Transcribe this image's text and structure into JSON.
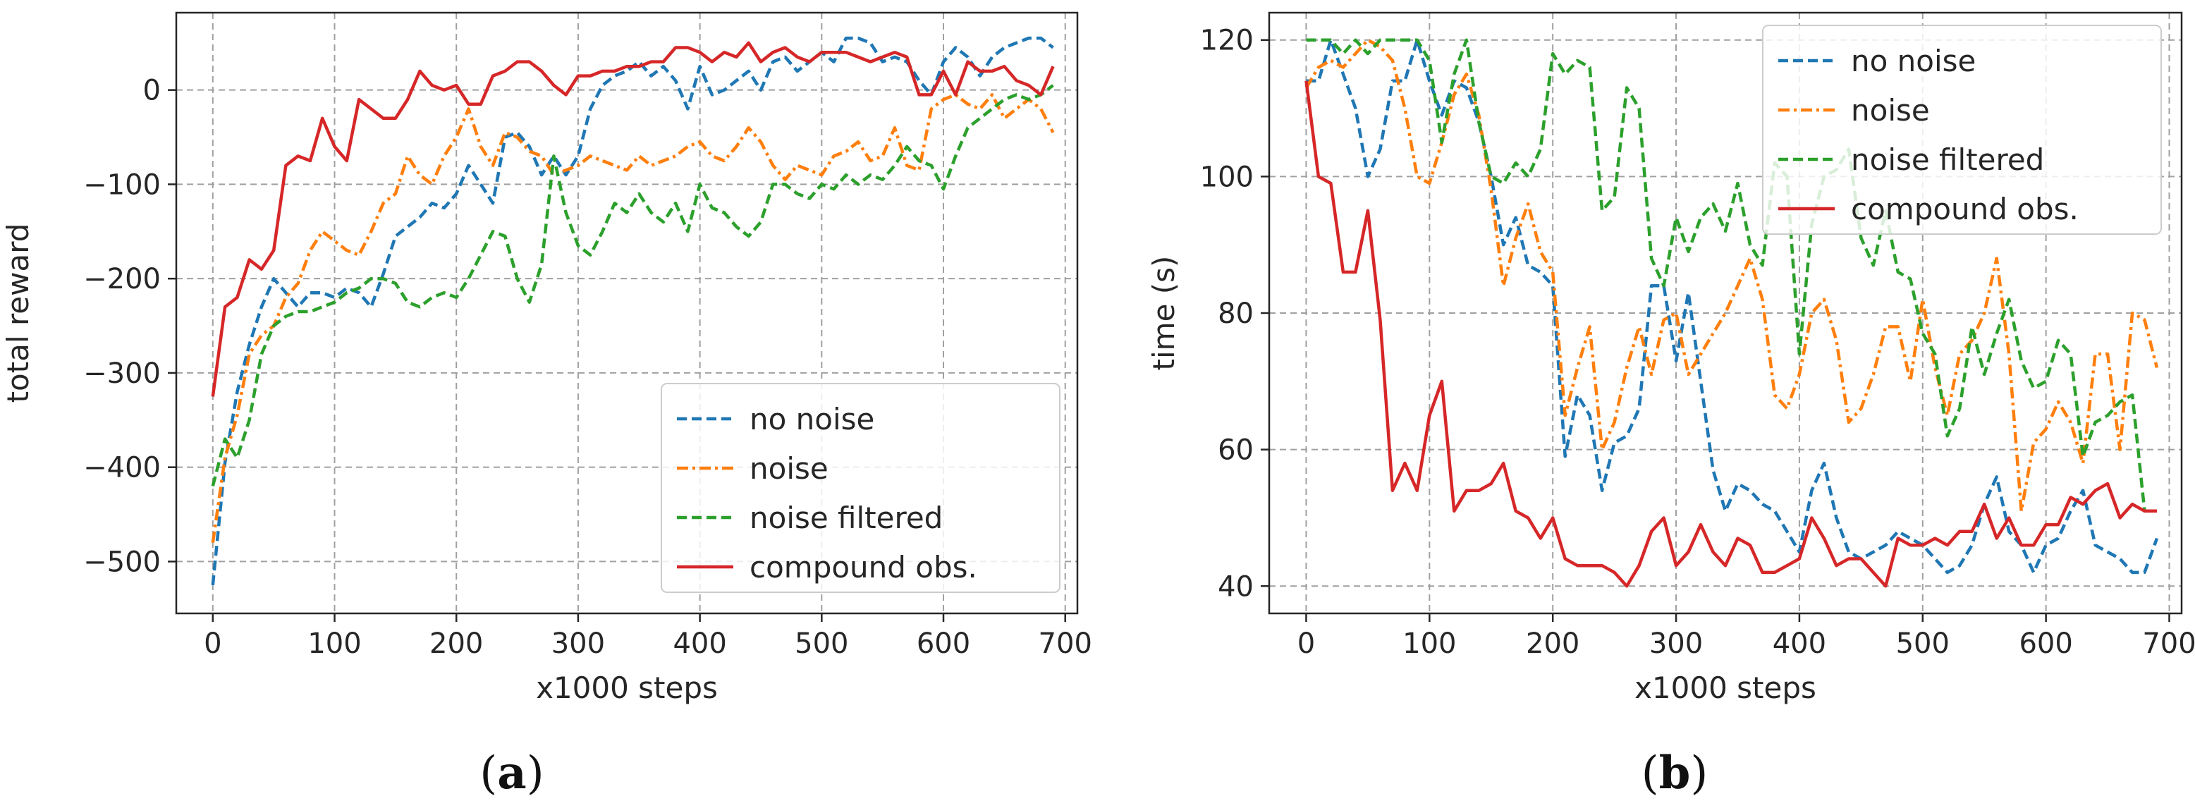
{
  "colors": {
    "no_noise": "#1f77b4",
    "noise": "#ff7f0e",
    "noise_filtered": "#2ca02c",
    "compound_obs": "#d62728",
    "grid": "#a0a0a0",
    "axis": "#262626"
  },
  "captions": {
    "a_open": "(",
    "a_letter": "a",
    "a_close": ")",
    "b_open": "(",
    "b_letter": "b",
    "b_close": ")"
  },
  "chart_data": [
    {
      "type": "line",
      "title": "",
      "xlabel": "x1000 steps",
      "ylabel": "total reward",
      "xlim": [
        -30,
        710
      ],
      "ylim": [
        -555,
        82
      ],
      "xticks": [
        0,
        100,
        200,
        300,
        400,
        500,
        600,
        700
      ],
      "xtick_labels": [
        "0",
        "100",
        "200",
        "300",
        "400",
        "500",
        "600",
        "700"
      ],
      "yticks": [
        -500,
        -400,
        -300,
        -200,
        -100,
        0
      ],
      "ytick_labels": [
        "−500",
        "−400",
        "−300",
        "−200",
        "−100",
        "0"
      ],
      "grid": true,
      "legend_position": "bottom-right",
      "x": [
        0,
        10,
        20,
        30,
        40,
        50,
        60,
        70,
        80,
        90,
        100,
        110,
        120,
        130,
        140,
        150,
        160,
        170,
        180,
        190,
        200,
        210,
        220,
        230,
        240,
        250,
        260,
        270,
        280,
        290,
        300,
        310,
        320,
        330,
        340,
        350,
        360,
        370,
        380,
        390,
        400,
        410,
        420,
        430,
        440,
        450,
        460,
        470,
        480,
        490,
        500,
        510,
        520,
        530,
        540,
        550,
        560,
        570,
        580,
        590,
        600,
        610,
        620,
        630,
        640,
        650,
        660,
        670,
        680,
        690
      ],
      "series": [
        {
          "name": "no noise",
          "style": "dashed",
          "values": [
            -525,
            -395,
            -320,
            -270,
            -230,
            -200,
            -215,
            -230,
            -215,
            -215,
            -220,
            -210,
            -215,
            -230,
            -195,
            -155,
            -145,
            -135,
            -120,
            -125,
            -110,
            -80,
            -100,
            -120,
            -50,
            -45,
            -60,
            -90,
            -70,
            -90,
            -70,
            -20,
            5,
            15,
            20,
            30,
            15,
            25,
            10,
            -20,
            25,
            -5,
            0,
            10,
            20,
            0,
            30,
            35,
            20,
            30,
            40,
            30,
            55,
            55,
            50,
            30,
            35,
            30,
            10,
            -5,
            30,
            45,
            35,
            15,
            35,
            45,
            50,
            55,
            55,
            45
          ]
        },
        {
          "name": "noise",
          "style": "dashdot",
          "values": [
            -480,
            -390,
            -345,
            -280,
            -260,
            -250,
            -220,
            -205,
            -170,
            -150,
            -160,
            -170,
            -175,
            -150,
            -120,
            -110,
            -70,
            -90,
            -100,
            -70,
            -50,
            -20,
            -60,
            -80,
            -45,
            -50,
            -65,
            -70,
            -90,
            -85,
            -80,
            -70,
            -75,
            -80,
            -85,
            -70,
            -80,
            -75,
            -70,
            -60,
            -55,
            -70,
            -75,
            -60,
            -40,
            -55,
            -80,
            -95,
            -80,
            -85,
            -90,
            -70,
            -65,
            -55,
            -75,
            -70,
            -40,
            -80,
            -85,
            -20,
            -10,
            -5,
            -15,
            -20,
            -5,
            -30,
            -20,
            -10,
            -20,
            -45
          ]
        },
        {
          "name": "noise filtered",
          "style": "dashed",
          "values": [
            -420,
            -370,
            -390,
            -350,
            -280,
            -250,
            -240,
            -235,
            -235,
            -230,
            -225,
            -215,
            -210,
            -200,
            -200,
            -205,
            -225,
            -230,
            -220,
            -215,
            -220,
            -200,
            -175,
            -150,
            -155,
            -200,
            -225,
            -185,
            -70,
            -130,
            -165,
            -175,
            -150,
            -120,
            -130,
            -110,
            -130,
            -140,
            -120,
            -150,
            -100,
            -125,
            -130,
            -145,
            -155,
            -140,
            -100,
            -100,
            -110,
            -115,
            -100,
            -105,
            -90,
            -100,
            -90,
            -95,
            -80,
            -60,
            -75,
            -80,
            -105,
            -70,
            -40,
            -30,
            -20,
            -10,
            -5,
            -10,
            -5,
            5
          ]
        },
        {
          "name": "compound obs.",
          "style": "solid",
          "values": [
            -325,
            -230,
            -220,
            -180,
            -190,
            -170,
            -80,
            -70,
            -75,
            -30,
            -60,
            -75,
            -10,
            -20,
            -30,
            -30,
            -10,
            20,
            5,
            0,
            5,
            -15,
            -15,
            15,
            20,
            30,
            30,
            20,
            5,
            -5,
            15,
            15,
            20,
            20,
            25,
            25,
            30,
            30,
            45,
            45,
            40,
            30,
            40,
            35,
            50,
            30,
            40,
            45,
            35,
            30,
            40,
            40,
            40,
            35,
            30,
            35,
            40,
            35,
            -5,
            -5,
            20,
            -5,
            30,
            20,
            20,
            25,
            10,
            5,
            -5,
            25
          ]
        }
      ]
    },
    {
      "type": "line",
      "title": "",
      "xlabel": "x1000 steps",
      "ylabel": "time (s)",
      "xlim": [
        -30,
        710
      ],
      "ylim": [
        36,
        124
      ],
      "xticks": [
        0,
        100,
        200,
        300,
        400,
        500,
        600,
        700
      ],
      "xtick_labels": [
        "0",
        "100",
        "200",
        "300",
        "400",
        "500",
        "600",
        "700"
      ],
      "yticks": [
        40,
        60,
        80,
        100,
        120
      ],
      "ytick_labels": [
        "40",
        "60",
        "80",
        "100",
        "120"
      ],
      "grid": true,
      "legend_position": "top-right",
      "x": [
        0,
        10,
        20,
        30,
        40,
        50,
        60,
        70,
        80,
        90,
        100,
        110,
        120,
        130,
        140,
        150,
        160,
        170,
        180,
        190,
        200,
        210,
        220,
        230,
        240,
        250,
        260,
        270,
        280,
        290,
        300,
        310,
        320,
        330,
        340,
        350,
        360,
        370,
        380,
        390,
        400,
        410,
        420,
        430,
        440,
        450,
        460,
        470,
        480,
        490,
        500,
        510,
        520,
        530,
        540,
        550,
        560,
        570,
        580,
        590,
        600,
        610,
        620,
        630,
        640,
        650,
        660,
        670,
        680,
        690
      ],
      "series": [
        {
          "name": "no noise",
          "style": "dashed",
          "values": [
            114,
            114,
            120,
            115,
            110,
            100,
            104,
            114,
            114,
            120,
            114,
            109,
            114,
            113,
            108,
            100,
            90,
            94,
            87,
            86,
            84,
            59,
            68,
            65,
            54,
            61,
            62,
            66,
            84,
            84,
            73,
            83,
            70,
            57,
            51,
            55,
            54,
            52,
            51,
            48,
            45,
            54,
            58,
            50,
            45,
            44,
            45,
            46,
            48,
            47,
            46,
            44,
            42,
            43,
            46,
            52,
            56,
            48,
            46,
            42,
            46,
            47,
            51,
            54,
            46,
            45,
            44,
            42,
            42,
            47
          ]
        },
        {
          "name": "noise",
          "style": "dashdot",
          "values": [
            113,
            116,
            117,
            116,
            118,
            120,
            119,
            117,
            110,
            100,
            99,
            105,
            112,
            115,
            109,
            98,
            84,
            91,
            96,
            89,
            86,
            65,
            72,
            78,
            60,
            64,
            72,
            78,
            71,
            79,
            80,
            71,
            74,
            77,
            80,
            84,
            88,
            82,
            68,
            66,
            71,
            80,
            82,
            76,
            64,
            66,
            71,
            78,
            78,
            70,
            82,
            72,
            65,
            74,
            76,
            80,
            88,
            74,
            51,
            61,
            63,
            67,
            64,
            58,
            74,
            74,
            60,
            80,
            79,
            72
          ]
        },
        {
          "name": "noise filtered",
          "style": "dashed",
          "values": [
            120,
            120,
            120,
            118,
            120,
            118,
            120,
            120,
            120,
            120,
            117,
            105,
            115,
            120,
            108,
            100,
            99,
            102,
            100,
            104,
            118,
            115,
            117,
            116,
            95,
            97,
            113,
            110,
            88,
            84,
            94,
            89,
            94,
            96,
            92,
            99,
            90,
            87,
            102,
            100,
            74,
            93,
            100,
            101,
            104,
            91,
            87,
            95,
            86,
            85,
            77,
            74,
            62,
            66,
            78,
            71,
            77,
            82,
            73,
            69,
            70,
            76,
            74,
            59,
            64,
            65,
            67,
            68,
            51,
            51
          ]
        },
        {
          "name": "compound obs.",
          "style": "solid",
          "values": [
            114,
            100,
            99,
            86,
            86,
            95,
            79,
            54,
            58,
            54,
            65,
            70,
            51,
            54,
            54,
            55,
            58,
            51,
            50,
            47,
            50,
            44,
            43,
            43,
            43,
            42,
            40,
            43,
            48,
            50,
            43,
            45,
            49,
            45,
            43,
            47,
            46,
            42,
            42,
            43,
            44,
            50,
            47,
            43,
            44,
            44,
            42,
            40,
            47,
            46,
            46,
            47,
            46,
            48,
            48,
            52,
            47,
            50,
            46,
            46,
            49,
            49,
            53,
            52,
            54,
            55,
            50,
            52,
            51,
            51
          ]
        }
      ]
    }
  ]
}
